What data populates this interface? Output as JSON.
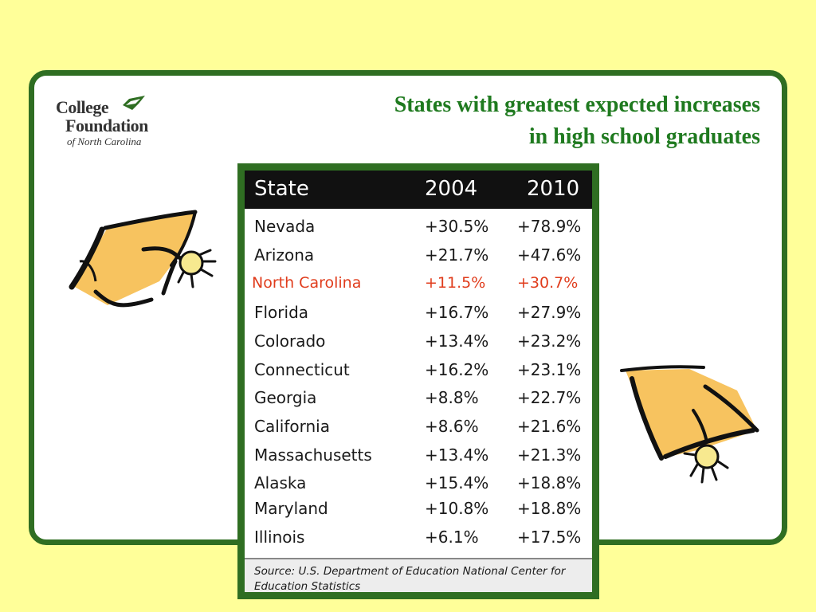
{
  "logo": {
    "line1": "College",
    "line2": "Foundation",
    "line3": "of North Carolina",
    "accent_color": "#2f6e22"
  },
  "title": {
    "line1": "States with greatest expected increases",
    "line2": "in high school graduates",
    "color": "#1f7a1f"
  },
  "table": {
    "headers": [
      "State",
      "2004",
      "2010"
    ],
    "rows": [
      {
        "state": "Nevada",
        "y2004": "+30.5%",
        "y2010": "+78.9%"
      },
      {
        "state": "Arizona",
        "y2004": "+21.7%",
        "y2010": "+47.6%"
      },
      {
        "state": "North Carolina",
        "y2004": "+11.5%",
        "y2010": "+30.7%",
        "highlight": true
      },
      {
        "state": "Florida",
        "y2004": "+16.7%",
        "y2010": "+27.9%"
      },
      {
        "state": "Colorado",
        "y2004": "+13.4%",
        "y2010": "+23.2%"
      },
      {
        "state": "Connecticut",
        "y2004": "+16.2%",
        "y2010": "+23.1%"
      },
      {
        "state": "Georgia",
        "y2004": "+8.8%",
        "y2010": "+22.7%"
      },
      {
        "state": "California",
        "y2004": "+8.6%",
        "y2010": "+21.6%"
      },
      {
        "state": "Massachusetts",
        "y2004": "+13.4%",
        "y2010": "+21.3%"
      },
      {
        "state": "Alaska",
        "y2004": "+15.4%",
        "y2010": "+18.8%"
      },
      {
        "state": "Maryland",
        "y2004": "+10.8%",
        "y2010": "+18.8%"
      },
      {
        "state": "Illinois",
        "y2004": "+6.1%",
        "y2010": "+17.5%"
      }
    ],
    "source_line1": "Source: U.S. Department of Education National Center for",
    "source_line2": "Education Statistics",
    "highlight_color": "#e03c1c"
  },
  "decorations": {
    "icon_left": "graduation-cap-icon",
    "icon_right": "graduation-cap-icon",
    "cap_fill_color": "#f7c35f"
  },
  "colors": {
    "background": "#ffff99",
    "frame": "#2f6e22"
  }
}
